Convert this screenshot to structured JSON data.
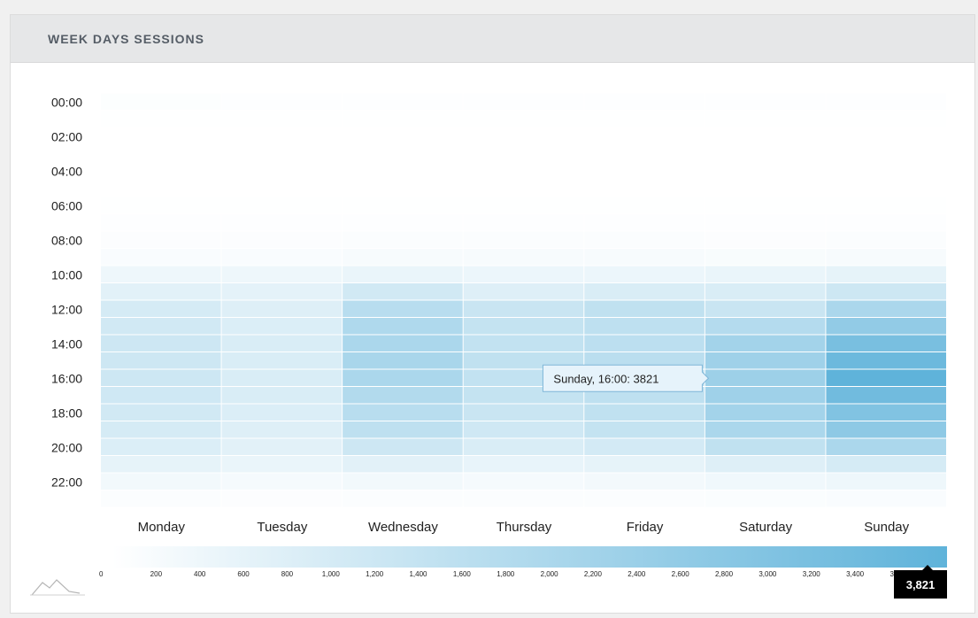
{
  "panel": {
    "title": "WEEK DAYS SESSIONS"
  },
  "tooltip": {
    "text": "Sunday, 16:00: 3821",
    "day": "Sunday",
    "hour": 16
  },
  "scale": {
    "min": 0,
    "max": 3821,
    "max_label": "3,821",
    "ticks": [
      "0",
      "200",
      "400",
      "600",
      "800",
      "1,000",
      "1,200",
      "1,400",
      "1,600",
      "1,800",
      "2,000",
      "2,200",
      "2,400",
      "2,600",
      "2,800",
      "3,000",
      "3,200",
      "3,400",
      "3,600"
    ],
    "tick_values": [
      0,
      200,
      400,
      600,
      800,
      1000,
      1200,
      1400,
      1600,
      1800,
      2000,
      2200,
      2400,
      2600,
      2800,
      3000,
      3200,
      3400,
      3600
    ]
  },
  "colors": {
    "low": "#ffffff",
    "high": "#5fb3da",
    "grid": "#ffffff",
    "logo": "#b5b5b5"
  },
  "icons": {
    "logo": "mountain-logo-icon"
  },
  "chart_data": {
    "type": "heatmap",
    "title": "WEEK DAYS SESSIONS",
    "days": [
      "Monday",
      "Tuesday",
      "Wednesday",
      "Thursday",
      "Friday",
      "Saturday",
      "Sunday"
    ],
    "hours": [
      0,
      1,
      2,
      3,
      4,
      5,
      6,
      7,
      8,
      9,
      10,
      11,
      12,
      13,
      14,
      15,
      16,
      17,
      18,
      19,
      20,
      21,
      22,
      23
    ],
    "y_tick_labels": [
      "00:00",
      "02:00",
      "04:00",
      "06:00",
      "08:00",
      "10:00",
      "12:00",
      "14:00",
      "16:00",
      "18:00",
      "20:00",
      "22:00"
    ],
    "values": [
      [
        60,
        25,
        10,
        5,
        5,
        10,
        20,
        40,
        80,
        150,
        400,
        700,
        1000,
        1100,
        1200,
        1200,
        1200,
        1150,
        1100,
        1000,
        850,
        600,
        300,
        100
      ],
      [
        40,
        20,
        10,
        5,
        5,
        10,
        20,
        40,
        80,
        150,
        400,
        650,
        800,
        850,
        900,
        900,
        900,
        900,
        850,
        800,
        700,
        500,
        250,
        80
      ],
      [
        40,
        20,
        10,
        5,
        5,
        10,
        20,
        40,
        100,
        200,
        500,
        1100,
        1700,
        1900,
        2000,
        2050,
        2000,
        1850,
        1700,
        1550,
        1200,
        700,
        300,
        100
      ],
      [
        40,
        20,
        10,
        5,
        5,
        10,
        20,
        40,
        90,
        180,
        450,
        800,
        1300,
        1400,
        1450,
        1500,
        1450,
        1400,
        1300,
        1150,
        900,
        550,
        250,
        90
      ],
      [
        40,
        20,
        10,
        5,
        5,
        10,
        20,
        40,
        90,
        180,
        450,
        900,
        1500,
        1550,
        1600,
        1650,
        1600,
        1550,
        1500,
        1400,
        1050,
        600,
        280,
        100
      ],
      [
        40,
        20,
        10,
        5,
        5,
        10,
        20,
        40,
        80,
        170,
        500,
        900,
        1300,
        1800,
        2200,
        2300,
        2350,
        2300,
        2200,
        2000,
        1500,
        800,
        350,
        120
      ],
      [
        40,
        20,
        10,
        5,
        5,
        10,
        20,
        40,
        90,
        190,
        600,
        1200,
        2000,
        2600,
        3200,
        3500,
        3821,
        3400,
        3000,
        2700,
        2000,
        1000,
        400,
        150
      ]
    ]
  }
}
